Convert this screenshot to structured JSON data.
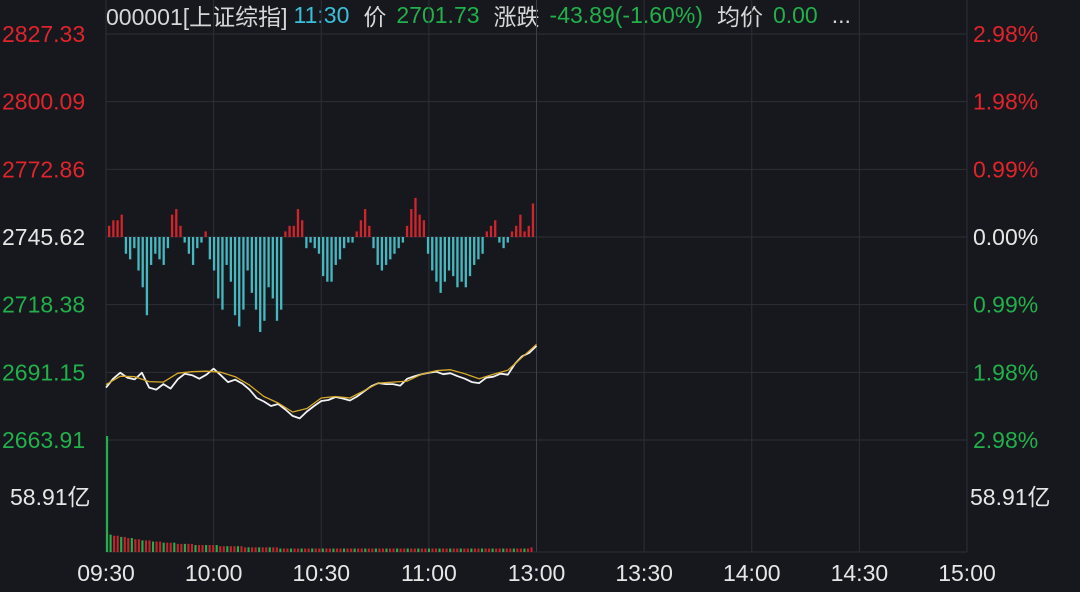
{
  "header": {
    "code": "000001[上证综指]",
    "time": "11:30",
    "price_label": "价",
    "price": "2701.73",
    "change_label": "涨跌",
    "change": "-43.89(-1.60%)",
    "avg_label": "均价",
    "avg": "0.00",
    "more": "..."
  },
  "colors": {
    "background": "#16181d",
    "grid": "#2c2f36",
    "up": "#e0242b",
    "down": "#22b04b",
    "neutral": "#e6e6e6",
    "price_line": "#f2f2f2",
    "avg_line": "#d6a92b",
    "breadth_down": "#46b8c0",
    "breadth_up": "#d1242b",
    "accent_time": "#39c0d8"
  },
  "chart_data": {
    "type": "line",
    "y_left_ticks": [
      {
        "label": "2827.33",
        "value": 2827.33,
        "color": "up"
      },
      {
        "label": "2800.09",
        "value": 2800.09,
        "color": "up"
      },
      {
        "label": "2772.86",
        "value": 2772.86,
        "color": "up"
      },
      {
        "label": "2745.62",
        "value": 2745.62,
        "color": "neutral"
      },
      {
        "label": "2718.38",
        "value": 2718.38,
        "color": "down"
      },
      {
        "label": "2691.15",
        "value": 2691.15,
        "color": "down"
      },
      {
        "label": "2663.91",
        "value": 2663.91,
        "color": "down"
      }
    ],
    "y_right_ticks": [
      {
        "label": "2.98%",
        "color": "up"
      },
      {
        "label": "1.98%",
        "color": "up"
      },
      {
        "label": "0.99%",
        "color": "up"
      },
      {
        "label": "0.00%",
        "color": "neutral"
      },
      {
        "label": "0.99%",
        "color": "down"
      },
      {
        "label": "1.98%",
        "color": "down"
      },
      {
        "label": "2.98%",
        "color": "down"
      }
    ],
    "ylim": [
      2663.91,
      2827.33
    ],
    "prev_close": 2745.62,
    "x_ticks": [
      "09:30",
      "10:00",
      "10:30",
      "11:00",
      "13:00",
      "13:30",
      "14:00",
      "14:30",
      "15:00"
    ],
    "x_range_minutes": [
      0,
      240
    ],
    "volume_label_left": "58.91亿",
    "volume_label_right": "58.91亿",
    "volume_max": 58.91,
    "series": [
      {
        "key": "price",
        "x": [
          0,
          2,
          4,
          6,
          8,
          10,
          12,
          14,
          16,
          18,
          20,
          22,
          24,
          26,
          28,
          30,
          32,
          34,
          36,
          38,
          40,
          42,
          44,
          46,
          48,
          50,
          52,
          54,
          56,
          58,
          60,
          62,
          64,
          66,
          68,
          70,
          72,
          74,
          76,
          78,
          80,
          82,
          84,
          86,
          88,
          90,
          92,
          94,
          96,
          98,
          100,
          102,
          104,
          106,
          108,
          110,
          112,
          114,
          116,
          118,
          120
        ],
        "values": [
          2685.0,
          2688.6,
          2691.0,
          2689.0,
          2688.3,
          2691.0,
          2685.0,
          2684.2,
          2686.4,
          2684.6,
          2688.4,
          2690.6,
          2690.0,
          2688.6,
          2690.2,
          2692.6,
          2690.0,
          2687.2,
          2688.2,
          2686.6,
          2684.2,
          2680.8,
          2679.4,
          2677.6,
          2678.4,
          2676.2,
          2673.6,
          2672.6,
          2675.4,
          2677.6,
          2679.6,
          2680.0,
          2681.2,
          2680.6,
          2679.8,
          2681.4,
          2683.6,
          2685.6,
          2686.8,
          2686.4,
          2686.4,
          2685.8,
          2688.6,
          2689.6,
          2690.4,
          2691.0,
          2691.4,
          2690.4,
          2690.8,
          2689.6,
          2688.6,
          2687.2,
          2686.8,
          2689.0,
          2689.4,
          2690.6,
          2690.2,
          2694.6,
          2697.6,
          2699.0,
          2701.8
        ]
      },
      {
        "key": "average",
        "x": [
          0,
          4,
          8,
          12,
          16,
          20,
          24,
          28,
          32,
          36,
          40,
          44,
          48,
          52,
          56,
          60,
          64,
          68,
          72,
          76,
          80,
          84,
          88,
          92,
          96,
          100,
          104,
          108,
          112,
          116,
          120
        ],
        "values": [
          2686.2,
          2689.6,
          2689.4,
          2687.4,
          2687.2,
          2690.8,
          2691.4,
          2691.6,
          2691.2,
          2689.4,
          2686.0,
          2681.4,
          2678.8,
          2675.2,
          2676.6,
          2680.8,
          2681.4,
          2680.8,
          2683.8,
          2686.8,
          2687.2,
          2687.6,
          2690.4,
          2691.8,
          2692.2,
          2690.6,
          2688.6,
          2690.4,
          2692.0,
          2697.2,
          2702.4
        ]
      }
    ],
    "breadth_bars": [
      2,
      3,
      3,
      4,
      -3,
      -4,
      -2,
      -6,
      -9,
      -14,
      -5,
      -3,
      -4,
      -5,
      -2,
      4,
      5,
      2,
      -1,
      -3,
      -5,
      -2,
      -1,
      1,
      -4,
      -6,
      -11,
      -13,
      -5,
      -8,
      -14,
      -16,
      -13,
      -6,
      -10,
      -13,
      -17,
      -15,
      -9,
      -11,
      -15,
      -13,
      1,
      2,
      2,
      5,
      3,
      -2,
      -1,
      -2,
      -3,
      -7,
      -8,
      -8,
      -5,
      -4,
      -2,
      -1,
      -1,
      1,
      3,
      5,
      2,
      -2,
      -5,
      -6,
      -5,
      -4,
      -3,
      -2,
      -1,
      2,
      5,
      7,
      4,
      3,
      -3,
      -6,
      -8,
      -10,
      -8,
      -6,
      -7,
      -9,
      -8,
      -9,
      -7,
      -5,
      -4,
      -3,
      1,
      2,
      3,
      -1,
      -2,
      -1,
      1,
      2,
      4,
      1,
      2,
      6
    ],
    "volume_bars": [
      100,
      15,
      14,
      14,
      13,
      13,
      12,
      12,
      11,
      11,
      10,
      10,
      10,
      9,
      9,
      9,
      8,
      8,
      8,
      8,
      7,
      7,
      7,
      7,
      7,
      6,
      6,
      6,
      6,
      6,
      6,
      6,
      5,
      5,
      5,
      5,
      5,
      5,
      5,
      4,
      4,
      4,
      4,
      4,
      4,
      4,
      4,
      4,
      4,
      3,
      3,
      3,
      3,
      3,
      3,
      3,
      3,
      3,
      3,
      3,
      3,
      3,
      3,
      3,
      3,
      3,
      3,
      3,
      3,
      3,
      3,
      3,
      3,
      3,
      3,
      3,
      3,
      3,
      3,
      3,
      3,
      3,
      3,
      3,
      3,
      3,
      3,
      3,
      3,
      3,
      3,
      3,
      3,
      3,
      3,
      3,
      3,
      3,
      3,
      3,
      3,
      3,
      3,
      3,
      3,
      3,
      3,
      3,
      3,
      3,
      3,
      3,
      3,
      3,
      3,
      3,
      3,
      3,
      3,
      3,
      4
    ]
  }
}
